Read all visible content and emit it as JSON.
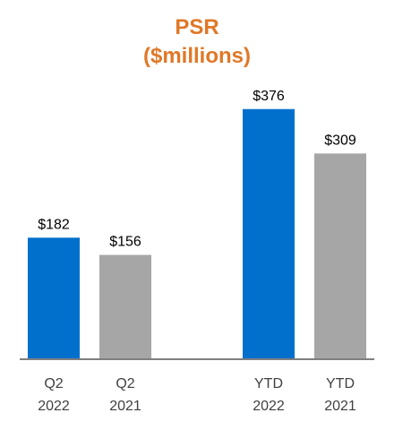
{
  "chart_data": {
    "type": "bar",
    "title": "PSR",
    "subtitle": "($millions)",
    "categories": [
      {
        "line1": "Q2",
        "line2": "2022"
      },
      {
        "line1": "Q2",
        "line2": "2021"
      },
      {
        "line1": "YTD",
        "line2": "2022"
      },
      {
        "line1": "YTD",
        "line2": "2021"
      }
    ],
    "values": [
      182,
      156,
      376,
      309
    ],
    "value_labels": [
      "$182",
      "$156",
      "$376",
      "$309"
    ],
    "bar_colors": [
      "#0070CC",
      "#A6A6A6",
      "#0070CC",
      "#A6A6A6"
    ],
    "title_color": "#E07828",
    "axis_color": "#7F7F7F",
    "ylim": [
      0,
      400
    ],
    "grid": false,
    "legend": "none"
  }
}
